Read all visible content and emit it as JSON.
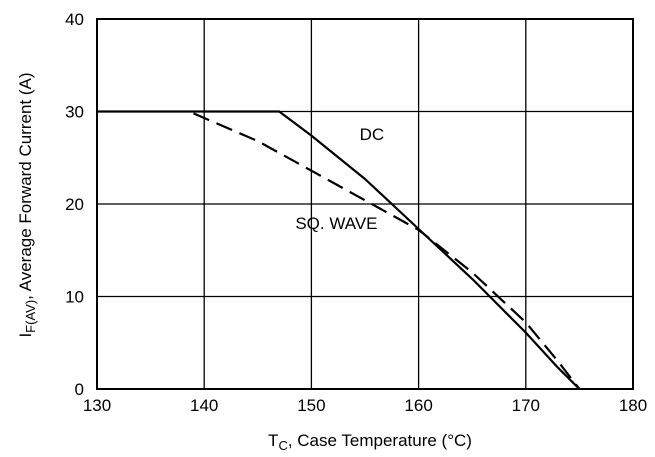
{
  "chart_data": {
    "type": "line",
    "xlabel": {
      "main": "T",
      "sub": "C",
      "rest": ", Case Temperature (°C)"
    },
    "ylabel": {
      "main": "I",
      "sub": "F(AV)",
      "rest": ", Average Forward Current (A)"
    },
    "xlim": [
      130,
      180
    ],
    "ylim": [
      0,
      40
    ],
    "x_ticks": [
      130,
      140,
      150,
      160,
      170,
      180
    ],
    "y_ticks": [
      0,
      10,
      20,
      30,
      40
    ],
    "x_tick_labels": [
      "130",
      "140",
      "150",
      "160",
      "170",
      "180"
    ],
    "y_tick_labels": [
      "0",
      "10",
      "20",
      "30",
      "40"
    ],
    "grid": true,
    "series": [
      {
        "name": "DC",
        "style": "solid",
        "x": [
          130,
          147,
          150,
          155,
          160,
          165,
          170,
          173,
          175
        ],
        "y": [
          30,
          30,
          27.4,
          22.7,
          17.3,
          11.9,
          6.1,
          2.3,
          0
        ]
      },
      {
        "name": "SQ. WAVE",
        "style": "dashed",
        "x": [
          139,
          145,
          150,
          155,
          160,
          165,
          170,
          173,
          175
        ],
        "y": [
          29.8,
          26.8,
          23.6,
          20.4,
          17.2,
          12.6,
          7.2,
          3,
          0
        ]
      }
    ],
    "annotations": [
      {
        "text": "DC",
        "x": 154.5,
        "y": 26.9
      },
      {
        "text": "SQ. WAVE",
        "x": 148.5,
        "y": 17.3
      }
    ]
  }
}
